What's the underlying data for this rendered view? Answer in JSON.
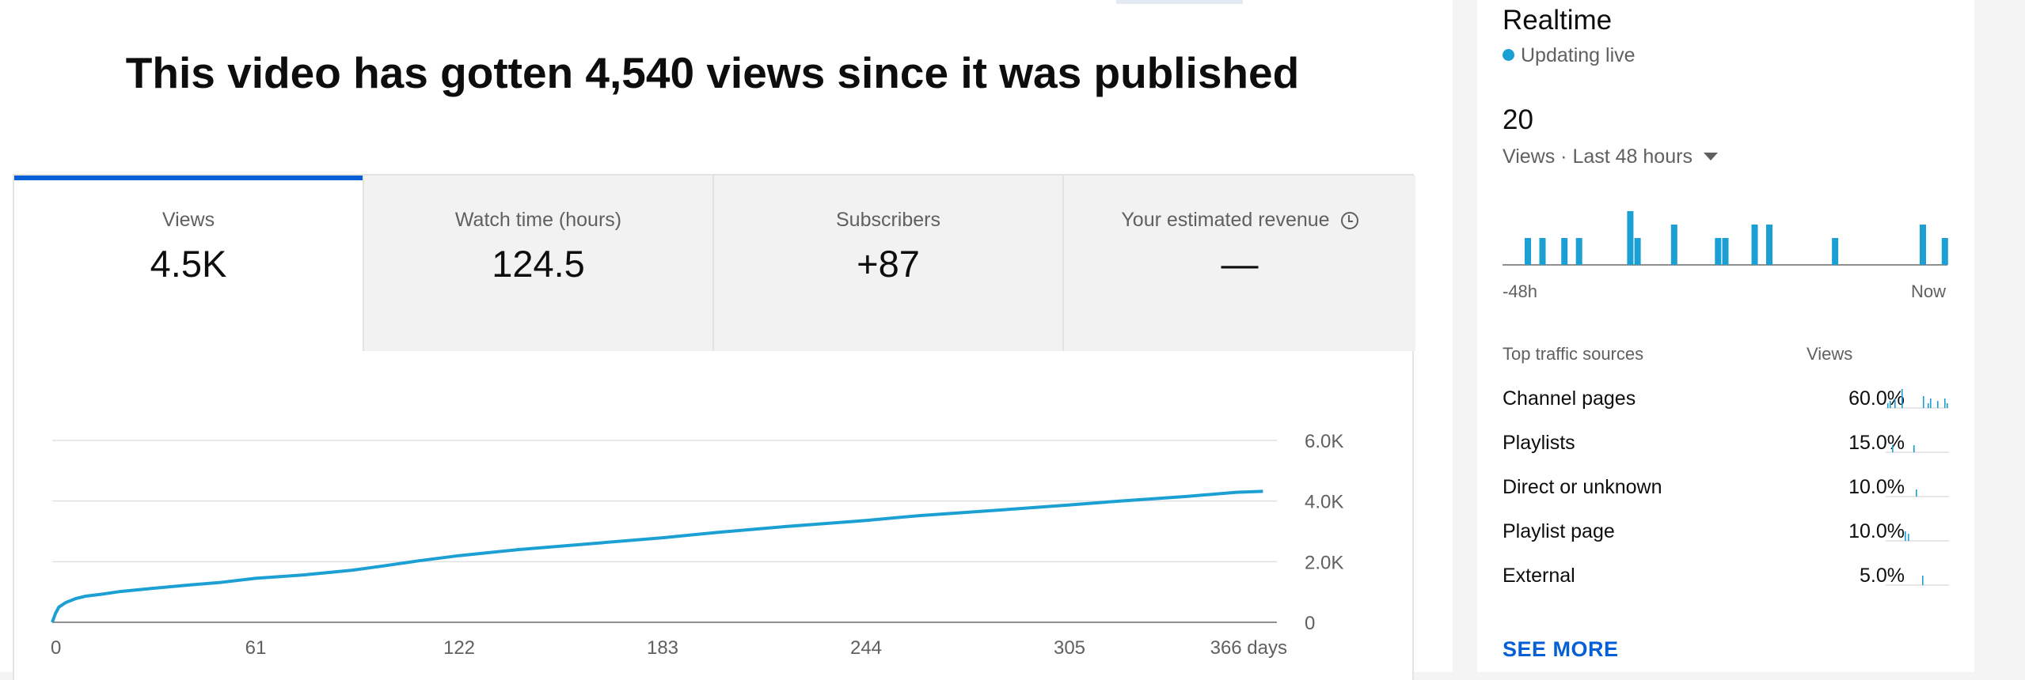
{
  "headline": "This video has gotten 4,540 views since it was published",
  "tabs": [
    {
      "label": "Views",
      "value": "4.5K"
    },
    {
      "label": "Watch time (hours)",
      "value": "124.5"
    },
    {
      "label": "Subscribers",
      "value": "+87"
    },
    {
      "label": "Your estimated revenue",
      "value": "—"
    }
  ],
  "colors": {
    "accent": "#065fd4",
    "series": "#1ca0d4"
  },
  "chart_data": {
    "type": "line",
    "title": "",
    "xlabel": "",
    "ylabel": "",
    "x_ticks": [
      "0",
      "61",
      "122",
      "183",
      "244",
      "305",
      "366 days"
    ],
    "y_ticks": [
      "6.0K",
      "4.0K",
      "2.0K",
      "0"
    ],
    "ylim": [
      0,
      6000
    ],
    "xlim": [
      0,
      366
    ],
    "grid": true,
    "series": [
      {
        "values_x": [
          0,
          1,
          2,
          4,
          7,
          10,
          15,
          20,
          30,
          40,
          50,
          61,
          75,
          90,
          100,
          110,
          122,
          140,
          160,
          183,
          200,
          220,
          244,
          260,
          280,
          305,
          320,
          340,
          355,
          363
        ],
        "values_y": [
          0,
          300,
          500,
          650,
          780,
          860,
          930,
          1010,
          1120,
          1220,
          1310,
          1450,
          1560,
          1720,
          1870,
          2030,
          2200,
          2400,
          2580,
          2790,
          2970,
          3160,
          3360,
          3520,
          3670,
          3870,
          4000,
          4150,
          4290,
          4320
        ]
      }
    ]
  },
  "realtime": {
    "title": "Realtime",
    "status": "Updating live",
    "count": "20",
    "views_label": "Views · Last 48 hours",
    "axis_start": "-48h",
    "axis_end": "Now",
    "bars": [
      2,
      0,
      2,
      0,
      0,
      2,
      0,
      2,
      0,
      0,
      0,
      0,
      0,
      0,
      4,
      2,
      0,
      0,
      0,
      0,
      3,
      0,
      0,
      0,
      0,
      0,
      2,
      2,
      0,
      0,
      0,
      3,
      0,
      3,
      0,
      0,
      0,
      0,
      0,
      0,
      0,
      0,
      2,
      0,
      0,
      0,
      0,
      0,
      0,
      0,
      0,
      0,
      0,
      0,
      3,
      0,
      0,
      2
    ]
  },
  "sources": {
    "header_name": "Top traffic sources",
    "header_value": "Views",
    "items": [
      {
        "name": "Channel pages",
        "pct": "60.0%",
        "spark": [
          2,
          3,
          0,
          4,
          0,
          0,
          8,
          0,
          0,
          0,
          0,
          0,
          0,
          0,
          0,
          5,
          0,
          2,
          4,
          0,
          0,
          3,
          0,
          0,
          4,
          2
        ]
      },
      {
        "name": "Playlists",
        "pct": "15.0%",
        "spark": [
          0,
          0,
          3,
          0,
          0,
          0,
          0,
          0,
          0,
          0,
          0,
          3,
          0,
          0,
          0,
          0,
          0,
          0,
          0,
          0,
          0,
          0,
          0,
          0,
          0,
          0
        ]
      },
      {
        "name": "Direct or unknown",
        "pct": "10.0%",
        "spark": [
          0,
          0,
          0,
          0,
          0,
          0,
          0,
          0,
          0,
          0,
          0,
          0,
          0,
          0,
          0,
          0,
          0,
          0,
          0,
          0,
          0,
          0,
          0,
          0,
          0,
          0
        ]
      },
      {
        "name": "Playlist page",
        "pct": "10.0%",
        "spark": [
          0,
          0,
          0,
          0,
          0,
          0,
          0,
          0,
          0,
          0,
          0,
          0,
          0,
          0,
          0,
          0,
          0,
          0,
          0,
          0,
          0,
          0,
          0,
          0,
          0,
          0
        ]
      },
      {
        "name": "External",
        "pct": "5.0%",
        "spark": [
          0,
          0,
          0,
          0,
          0,
          0,
          0,
          0,
          0,
          0,
          0,
          0,
          0,
          0,
          0,
          0,
          0,
          0,
          0,
          0,
          0,
          0,
          0,
          0,
          0,
          0
        ]
      }
    ]
  },
  "see_more": "SEE MORE"
}
